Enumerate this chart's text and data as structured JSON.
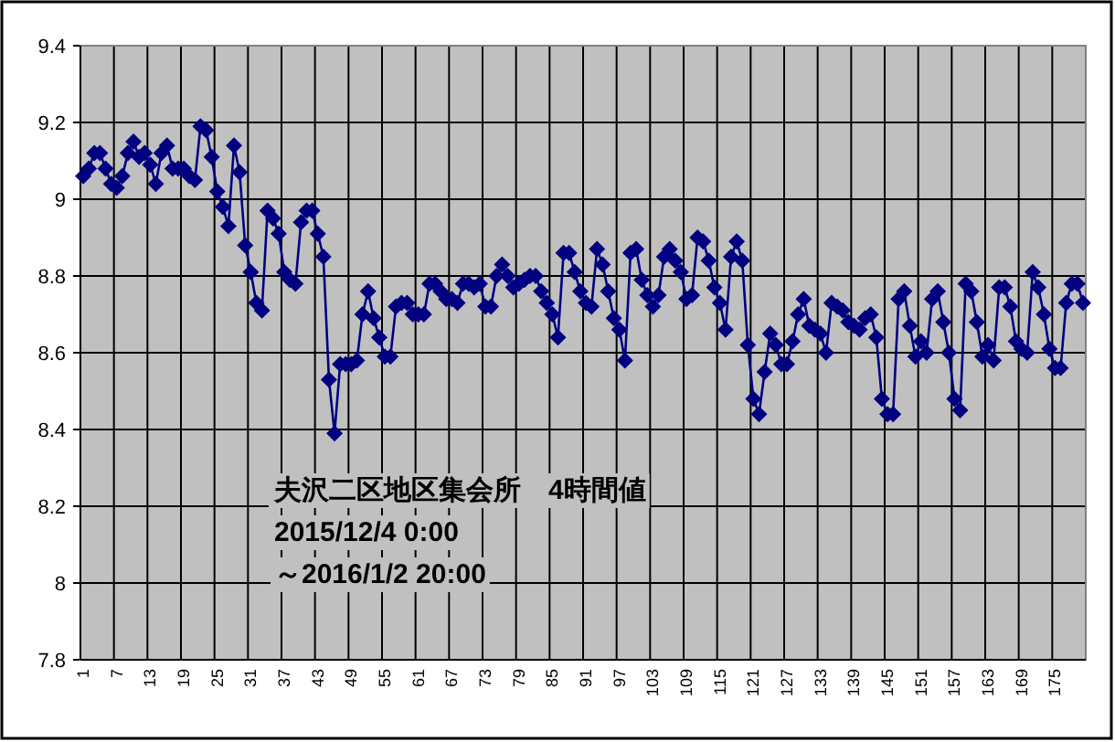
{
  "chart_data": {
    "type": "line",
    "categories": [
      "1",
      null,
      null,
      null,
      null,
      null,
      "7",
      null,
      null,
      null,
      null,
      null,
      "13",
      null,
      null,
      null,
      null,
      null,
      "19",
      null,
      null,
      null,
      null,
      null,
      "25",
      null,
      null,
      null,
      null,
      null,
      "31",
      null,
      null,
      null,
      null,
      null,
      "37",
      null,
      null,
      null,
      null,
      null,
      "43",
      null,
      null,
      null,
      null,
      null,
      "49",
      null,
      null,
      null,
      null,
      null,
      "55",
      null,
      null,
      null,
      null,
      null,
      "61",
      null,
      null,
      null,
      null,
      null,
      "67",
      null,
      null,
      null,
      null,
      null,
      "73",
      null,
      null,
      null,
      null,
      null,
      "79",
      null,
      null,
      null,
      null,
      null,
      "85",
      null,
      null,
      null,
      null,
      null,
      "91",
      null,
      null,
      null,
      null,
      null,
      "97",
      null,
      null,
      null,
      null,
      null,
      "103",
      null,
      null,
      null,
      null,
      null,
      "109",
      null,
      null,
      null,
      null,
      null,
      "115",
      null,
      null,
      null,
      null,
      null,
      "121",
      null,
      null,
      null,
      null,
      null,
      "127",
      null,
      null,
      null,
      null,
      null,
      "133",
      null,
      null,
      null,
      null,
      null,
      "139",
      null,
      null,
      null,
      null,
      null,
      "145",
      null,
      null,
      null,
      null,
      null,
      "151",
      null,
      null,
      null,
      null,
      null,
      "157",
      null,
      null,
      null,
      null,
      null,
      "163",
      null,
      null,
      null,
      null,
      null,
      "169",
      null,
      null,
      null,
      null,
      null,
      "175",
      null,
      null,
      null,
      null,
      null
    ],
    "series": [
      {
        "color": "#000080",
        "values": [
          9.06,
          9.08,
          9.12,
          9.12,
          9.08,
          9.04,
          9.03,
          9.06,
          9.12,
          9.15,
          9.11,
          9.12,
          9.09,
          9.04,
          9.12,
          9.14,
          9.08,
          9.08,
          9.08,
          9.06,
          9.05,
          9.19,
          9.18,
          9.11,
          9.02,
          8.98,
          8.93,
          9.14,
          9.07,
          8.88,
          8.81,
          8.73,
          8.71,
          8.97,
          8.95,
          8.91,
          8.81,
          8.79,
          8.78,
          8.94,
          8.97,
          8.97,
          8.91,
          8.85,
          8.53,
          8.39,
          8.57,
          8.57,
          8.57,
          8.58,
          8.7,
          8.76,
          8.69,
          8.64,
          8.59,
          8.59,
          8.72,
          8.73,
          8.73,
          8.7,
          8.7,
          8.7,
          8.78,
          8.78,
          8.76,
          8.74,
          8.74,
          8.73,
          8.78,
          8.78,
          8.77,
          8.78,
          8.72,
          8.72,
          8.8,
          8.83,
          8.8,
          8.77,
          8.78,
          8.79,
          8.8,
          8.8,
          8.76,
          8.73,
          8.7,
          8.64,
          8.86,
          8.86,
          8.81,
          8.76,
          8.73,
          8.72,
          8.87,
          8.83,
          8.76,
          8.69,
          8.66,
          8.58,
          8.86,
          8.87,
          8.79,
          8.75,
          8.72,
          8.75,
          8.85,
          8.87,
          8.84,
          8.81,
          8.74,
          8.75,
          8.9,
          8.89,
          8.84,
          8.77,
          8.73,
          8.66,
          8.85,
          8.89,
          8.84,
          8.62,
          8.48,
          8.44,
          8.55,
          8.65,
          8.62,
          8.57,
          8.57,
          8.63,
          8.7,
          8.74,
          8.67,
          8.66,
          8.65,
          8.6,
          8.73,
          8.72,
          8.71,
          8.68,
          8.67,
          8.66,
          8.69,
          8.7,
          8.64,
          8.48,
          8.44,
          8.44,
          8.74,
          8.76,
          8.67,
          8.59,
          8.63,
          8.6,
          8.74,
          8.76,
          8.68,
          8.6,
          8.48,
          8.45,
          8.78,
          8.76,
          8.68,
          8.59,
          8.62,
          8.58,
          8.77,
          8.77,
          8.72,
          8.63,
          8.61,
          8.6,
          8.81,
          8.77,
          8.7,
          8.61,
          8.56,
          8.56,
          8.73,
          8.78,
          8.78,
          8.73
        ]
      }
    ],
    "ylim": [
      7.8,
      9.4
    ],
    "yticks": [
      7.8,
      8,
      8.2,
      8.4,
      8.6,
      8.8,
      9,
      9.2,
      9.4
    ],
    "grid": true,
    "marker": "diamond",
    "line_style": "solid",
    "annotations": [
      "夫沢二区地区集会所　4時間値",
      "2015/12/4 0:00",
      "～2016/1/2 20:00"
    ]
  }
}
